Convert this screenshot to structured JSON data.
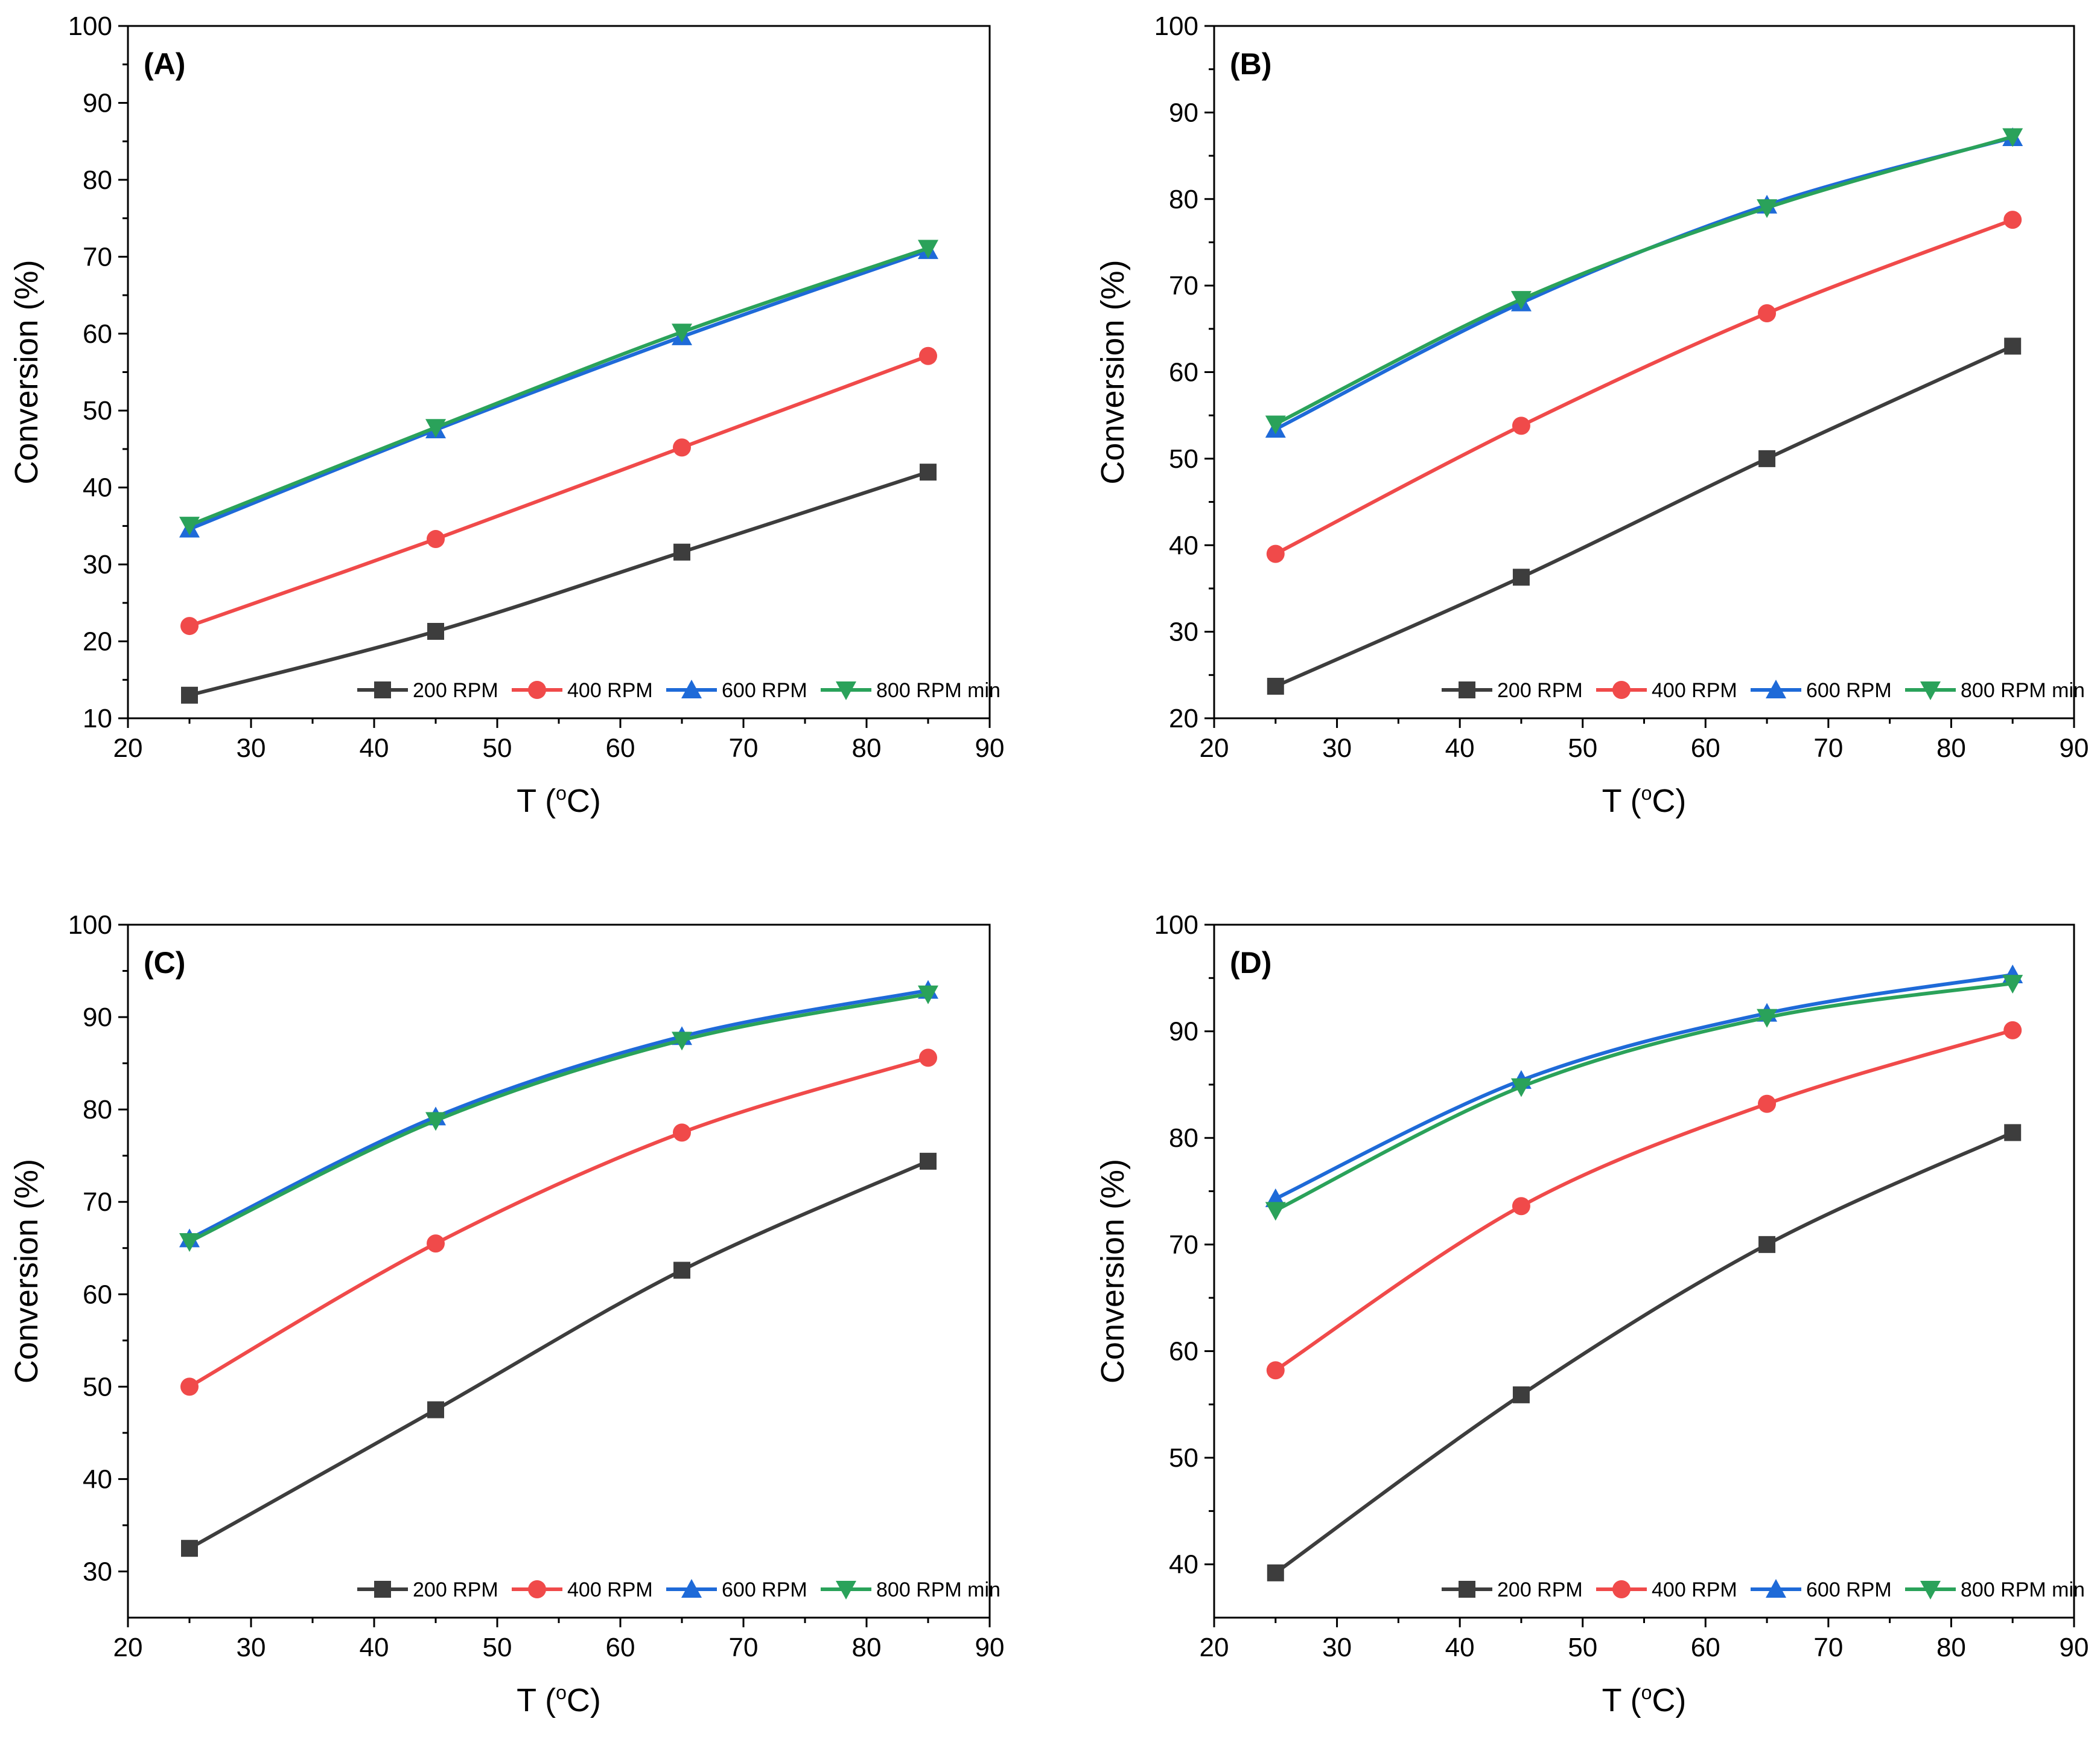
{
  "chart_data": [
    {
      "type": "line",
      "panel_label": "(A)",
      "xlabel_main": "T (",
      "xlabel_sup": "o",
      "xlabel_end": "C)",
      "ylabel": "Conversion (%)",
      "xlim": [
        20,
        90
      ],
      "ylim": [
        10,
        100
      ],
      "xticks": [
        20,
        30,
        40,
        50,
        60,
        70,
        80,
        90
      ],
      "yticks": [
        10,
        20,
        30,
        40,
        50,
        60,
        70,
        80,
        90,
        100
      ],
      "x": [
        25,
        45,
        65,
        85
      ],
      "legend_position": "bottom-right",
      "series": [
        {
          "name": "200 RPM",
          "values": [
            13,
            21.3,
            31.6,
            42
          ]
        },
        {
          "name": "400 RPM",
          "values": [
            22,
            33.3,
            45.2,
            57.1
          ]
        },
        {
          "name": "600 RPM",
          "values": [
            34.6,
            47.5,
            59.6,
            70.8
          ]
        },
        {
          "name": "800 RPM min",
          "values": [
            35.1,
            47.8,
            60.2,
            71.1
          ]
        }
      ]
    },
    {
      "type": "line",
      "panel_label": "(B)",
      "xlabel_main": "T (",
      "xlabel_sup": "o",
      "xlabel_end": "C)",
      "ylabel": "Conversion (%)",
      "xlim": [
        20,
        90
      ],
      "ylim": [
        20,
        100
      ],
      "xticks": [
        20,
        30,
        40,
        50,
        60,
        70,
        80,
        90
      ],
      "yticks": [
        20,
        30,
        40,
        50,
        60,
        70,
        80,
        90,
        100
      ],
      "x": [
        25,
        45,
        65,
        85
      ],
      "legend_position": "bottom-right",
      "series": [
        {
          "name": "200 RPM",
          "values": [
            23.7,
            36.3,
            50,
            63
          ]
        },
        {
          "name": "400 RPM",
          "values": [
            39,
            53.8,
            66.8,
            77.6
          ]
        },
        {
          "name": "600 RPM",
          "values": [
            53.4,
            68,
            79.3,
            87.1
          ]
        },
        {
          "name": "800 RPM min",
          "values": [
            54,
            68.4,
            79,
            87.2
          ]
        }
      ]
    },
    {
      "type": "line",
      "panel_label": "(C)",
      "xlabel_main": "T (",
      "xlabel_sup": "o",
      "xlabel_end": "C)",
      "ylabel": "Conversion (%)",
      "xlim": [
        20,
        90
      ],
      "ylim": [
        25,
        100
      ],
      "xticks": [
        20,
        30,
        40,
        50,
        60,
        70,
        80,
        90
      ],
      "yticks": [
        30,
        40,
        50,
        60,
        70,
        80,
        90,
        100
      ],
      "x": [
        25,
        45,
        65,
        85
      ],
      "legend_position": "bottom-right",
      "series": [
        {
          "name": "200 RPM",
          "values": [
            32.5,
            47.5,
            62.6,
            74.4
          ]
        },
        {
          "name": "400 RPM",
          "values": [
            50,
            65.5,
            77.5,
            85.6
          ]
        },
        {
          "name": "600 RPM",
          "values": [
            66,
            79.2,
            87.9,
            92.9
          ]
        },
        {
          "name": "800 RPM min",
          "values": [
            65.7,
            78.8,
            87.5,
            92.5
          ]
        }
      ]
    },
    {
      "type": "line",
      "panel_label": "(D)",
      "xlabel_main": "T (",
      "xlabel_sup": "o",
      "xlabel_end": "C)",
      "ylabel": "Conversion (%)",
      "xlim": [
        20,
        90
      ],
      "ylim": [
        35,
        100
      ],
      "xticks": [
        20,
        30,
        40,
        50,
        60,
        70,
        80,
        90
      ],
      "yticks": [
        40,
        50,
        60,
        70,
        80,
        90,
        100
      ],
      "x": [
        25,
        45,
        65,
        85
      ],
      "legend_position": "bottom-right",
      "series": [
        {
          "name": "200 RPM",
          "values": [
            39.2,
            55.9,
            70,
            80.5
          ]
        },
        {
          "name": "400 RPM",
          "values": [
            58.2,
            73.6,
            83.2,
            90.1
          ]
        },
        {
          "name": "600 RPM",
          "values": [
            74.3,
            85.4,
            91.7,
            95.3
          ]
        },
        {
          "name": "800 RPM min",
          "values": [
            73.2,
            84.8,
            91.3,
            94.5
          ]
        }
      ]
    }
  ],
  "series_colors": [
    "#3d3d3d",
    "#f04a4a",
    "#1e6ad8",
    "#2aa25a"
  ],
  "series_markers": [
    "square",
    "circle",
    "triangle-up",
    "triangle-down"
  ]
}
